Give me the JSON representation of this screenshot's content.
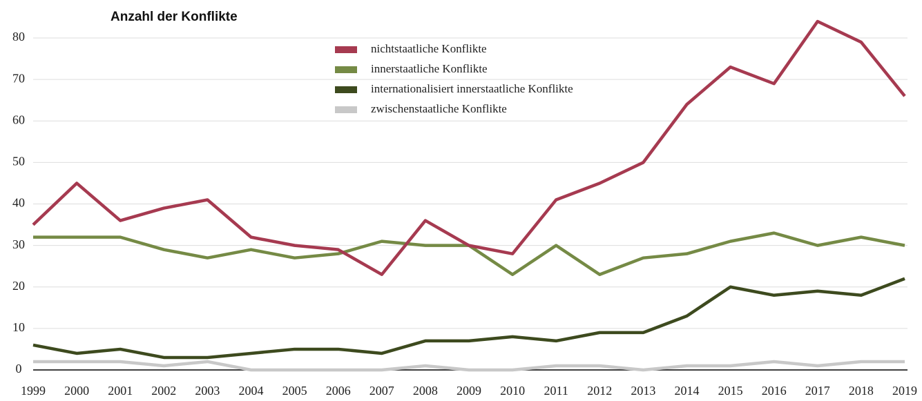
{
  "chart_data": {
    "type": "line",
    "title": "Anzahl der Konflikte",
    "categories": [
      "1999",
      "2000",
      "2001",
      "2002",
      "2003",
      "2004",
      "2005",
      "2006",
      "2007",
      "2008",
      "2009",
      "2010",
      "2011",
      "2012",
      "2013",
      "2014",
      "2015",
      "2016",
      "2017",
      "2018",
      "2019"
    ],
    "series": [
      {
        "name": "nichtstaatliche Konflikte",
        "color": "#a63a50",
        "values": [
          35,
          45,
          36,
          39,
          41,
          32,
          30,
          29,
          23,
          36,
          30,
          28,
          41,
          45,
          50,
          64,
          73,
          69,
          84,
          79,
          66
        ]
      },
      {
        "name": "innerstaatliche Konflikte",
        "color": "#758a45",
        "values": [
          32,
          32,
          32,
          29,
          27,
          29,
          27,
          28,
          31,
          30,
          30,
          23,
          30,
          23,
          27,
          28,
          31,
          33,
          30,
          32,
          30
        ]
      },
      {
        "name": "internationalisiert innerstaatliche Konflikte",
        "color": "#3d4a1e",
        "values": [
          6,
          4,
          5,
          3,
          3,
          4,
          5,
          5,
          4,
          7,
          7,
          8,
          7,
          9,
          9,
          13,
          20,
          18,
          19,
          18,
          22
        ]
      },
      {
        "name": "zwischenstaatliche Konflikte",
        "color": "#c8c8c8",
        "values": [
          2,
          2,
          2,
          1,
          2,
          0,
          0,
          0,
          0,
          1,
          0,
          0,
          1,
          1,
          0,
          1,
          1,
          2,
          1,
          2,
          2
        ]
      }
    ],
    "ylim": [
      0,
      85
    ],
    "yticks": [
      0,
      10,
      20,
      30,
      40,
      50,
      60,
      70,
      80
    ],
    "grid": true,
    "legend": "top"
  }
}
